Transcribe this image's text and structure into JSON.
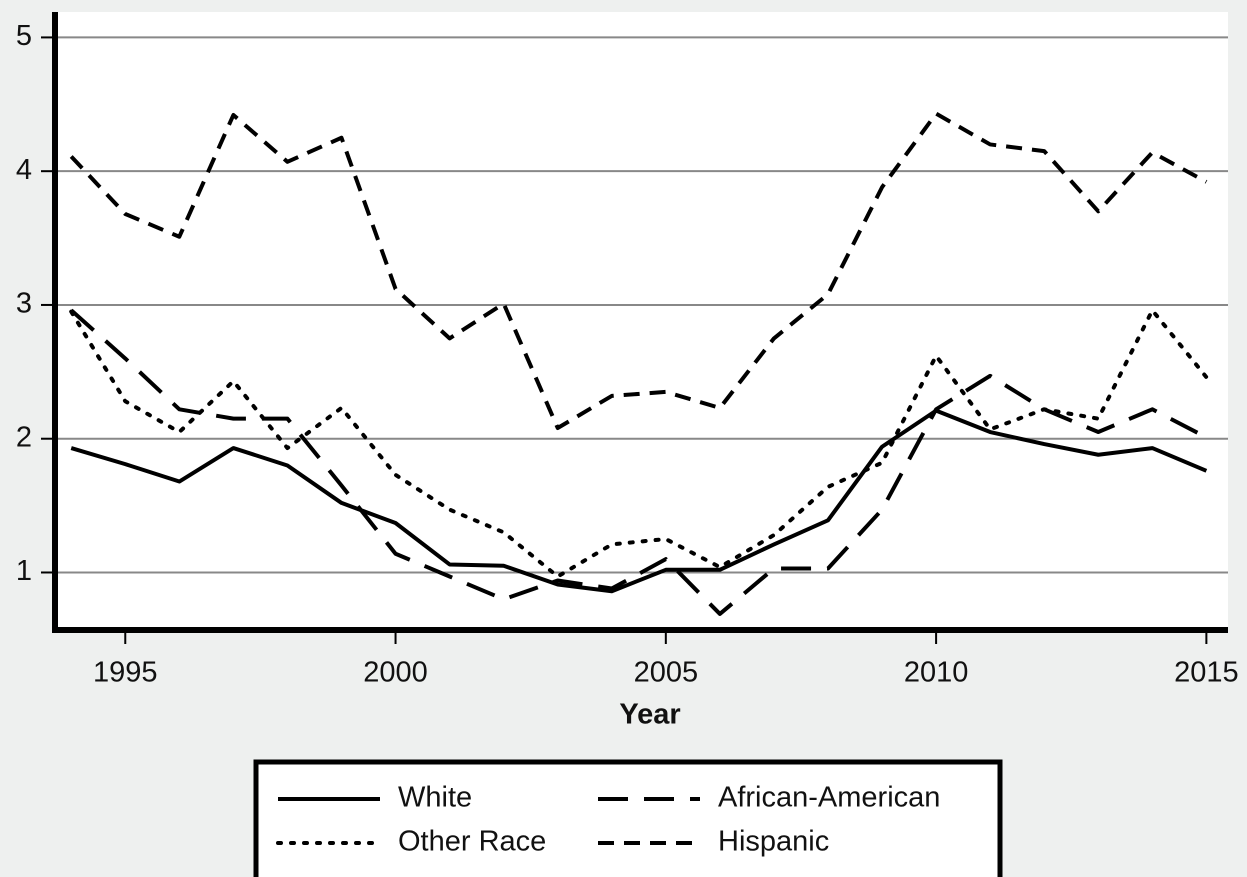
{
  "chart_data": {
    "type": "line",
    "x_label": "Year",
    "x": [
      1994,
      1995,
      1996,
      1997,
      1998,
      1999,
      2000,
      2001,
      2002,
      2003,
      2004,
      2005,
      2006,
      2007,
      2008,
      2009,
      2010,
      2011,
      2012,
      2013,
      2014,
      2015
    ],
    "series": [
      {
        "name": "White",
        "color": "#000000",
        "style": "solid",
        "values": [
          1.93,
          1.81,
          1.68,
          1.93,
          1.8,
          1.52,
          1.37,
          1.06,
          1.05,
          0.91,
          0.86,
          1.02,
          1.02,
          1.21,
          1.39,
          1.94,
          2.21,
          2.05,
          1.96,
          1.88,
          1.93,
          1.76
        ]
      },
      {
        "name": "African-American",
        "color": "#000000",
        "style": "longdash",
        "values": [
          2.96,
          2.6,
          2.22,
          2.15,
          2.15,
          1.65,
          1.14,
          0.97,
          0.8,
          0.94,
          0.88,
          1.1,
          0.69,
          1.03,
          1.03,
          1.47,
          2.22,
          2.47,
          2.22,
          2.05,
          2.22,
          2.01
        ]
      },
      {
        "name": "Other Race",
        "color": "#000000",
        "style": "dot",
        "values": [
          2.95,
          2.28,
          2.05,
          2.43,
          1.93,
          2.23,
          1.73,
          1.47,
          1.3,
          0.97,
          1.21,
          1.25,
          1.04,
          1.28,
          1.64,
          1.82,
          2.62,
          2.07,
          2.22,
          2.15,
          2.96,
          2.46
        ]
      },
      {
        "name": "Hispanic",
        "color": "#000000",
        "style": "dash",
        "values": [
          4.11,
          3.68,
          3.51,
          4.42,
          4.07,
          4.25,
          3.12,
          2.75,
          3.01,
          2.08,
          2.32,
          2.35,
          2.23,
          2.75,
          3.08,
          3.88,
          4.43,
          4.2,
          4.15,
          3.7,
          4.14,
          3.92
        ]
      }
    ],
    "xlim": [
      1993.7,
      2015.4
    ],
    "xticks": [
      1995,
      2000,
      2005,
      2010,
      2015
    ],
    "ylim": [
      0.57,
      5.19
    ],
    "yticks": [
      1,
      2,
      3,
      4,
      5
    ],
    "grid": true,
    "legend": "bottom"
  }
}
